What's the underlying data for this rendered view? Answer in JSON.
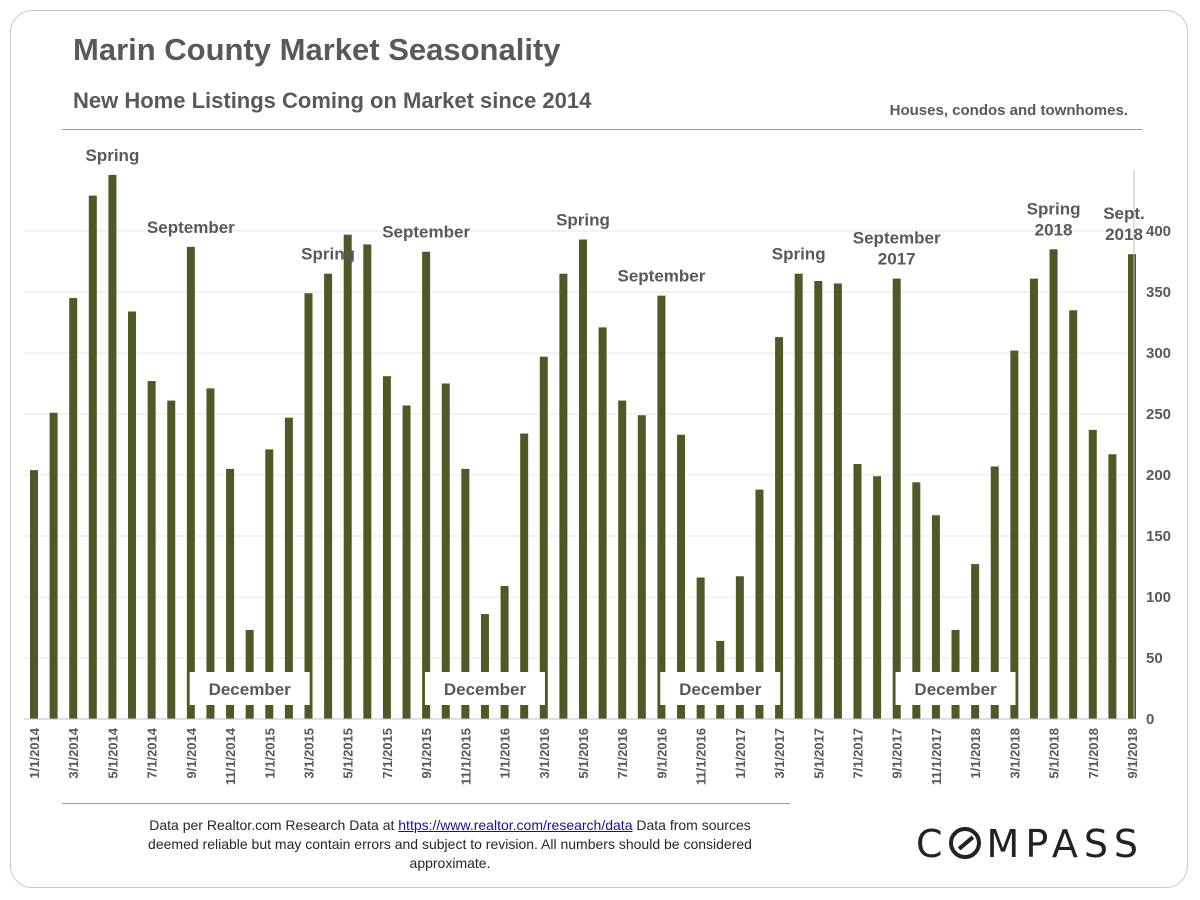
{
  "header": {
    "title": "Marin County Market Seasonality",
    "subtitle": "New Home Listings Coming on Market since 2014",
    "note": "Houses, condos and townhomes."
  },
  "footer": {
    "text_before": "Data per Realtor.com Research Data at ",
    "link": "https://www.realtor.com/research/data",
    "text_after": "  Data from sources deemed reliable but may contain errors and subject to revision.  All numbers should be considered approximate."
  },
  "logo": {
    "text_start": "C",
    "text_end": "MPASS"
  },
  "colors": {
    "bar": "#4d5a25",
    "axis_text": "#595959",
    "grid": "#e6e6e6"
  },
  "chart_data": {
    "type": "bar",
    "title": "Marin County Market Seasonality",
    "subtitle": "New Home Listings Coming on Market since 2014",
    "ylim": [
      0,
      450
    ],
    "yticks": [
      0,
      50,
      100,
      150,
      200,
      250,
      300,
      350,
      400
    ],
    "y_axis_position": "right",
    "grid": true,
    "categories": [
      "1/1/2014",
      "2/1/2014",
      "3/1/2014",
      "4/1/2014",
      "5/1/2014",
      "6/1/2014",
      "7/1/2014",
      "8/1/2014",
      "9/1/2014",
      "10/1/2014",
      "11/1/2014",
      "12/1/2014",
      "1/1/2015",
      "2/1/2015",
      "3/1/2015",
      "4/1/2015",
      "5/1/2015",
      "6/1/2015",
      "7/1/2015",
      "8/1/2015",
      "9/1/2015",
      "10/1/2015",
      "11/1/2015",
      "12/1/2015",
      "1/1/2016",
      "2/1/2016",
      "3/1/2016",
      "4/1/2016",
      "5/1/2016",
      "6/1/2016",
      "7/1/2016",
      "8/1/2016",
      "9/1/2016",
      "10/1/2016",
      "11/1/2016",
      "12/1/2016",
      "1/1/2017",
      "2/1/2017",
      "3/1/2017",
      "4/1/2017",
      "5/1/2017",
      "6/1/2017",
      "7/1/2017",
      "8/1/2017",
      "9/1/2017",
      "10/1/2017",
      "11/1/2017",
      "12/1/2017",
      "1/1/2018",
      "2/1/2018",
      "3/1/2018",
      "4/1/2018",
      "5/1/2018",
      "6/1/2018",
      "7/1/2018",
      "8/1/2018",
      "9/1/2018"
    ],
    "x_tick_labels": [
      "1/1/2014",
      "3/1/2014",
      "5/1/2014",
      "7/1/2014",
      "9/1/2014",
      "11/1/2014",
      "1/1/2015",
      "3/1/2015",
      "5/1/2015",
      "7/1/2015",
      "9/1/2015",
      "11/1/2015",
      "1/1/2016",
      "3/1/2016",
      "5/1/2016",
      "7/1/2016",
      "9/1/2016",
      "11/1/2016",
      "1/1/2017",
      "3/1/2017",
      "5/1/2017",
      "7/1/2017",
      "9/1/2017",
      "11/1/2017",
      "1/1/2018",
      "3/1/2018",
      "5/1/2018",
      "7/1/2018",
      "9/1/2018"
    ],
    "values": [
      204,
      251,
      345,
      429,
      446,
      334,
      277,
      261,
      387,
      271,
      205,
      73,
      221,
      247,
      349,
      365,
      397,
      389,
      281,
      257,
      383,
      275,
      205,
      86,
      109,
      234,
      297,
      365,
      393,
      321,
      261,
      249,
      347,
      233,
      116,
      64,
      117,
      188,
      313,
      365,
      359,
      357,
      209,
      199,
      361,
      194,
      167,
      73,
      127,
      207,
      302,
      361,
      385,
      335,
      237,
      217,
      381
    ],
    "annotations": [
      {
        "text": "Spring",
        "index": 4
      },
      {
        "text": "September",
        "index": 8
      },
      {
        "text": "December",
        "index": 11
      },
      {
        "text": "Spring",
        "index": 15
      },
      {
        "text": "September",
        "index": 20
      },
      {
        "text": "December",
        "index": 23
      },
      {
        "text": "Spring",
        "index": 28
      },
      {
        "text": "September",
        "index": 32
      },
      {
        "text": "December",
        "index": 35
      },
      {
        "text": "Spring",
        "index": 39
      },
      {
        "text": "September 2017",
        "index": 44
      },
      {
        "text": "December",
        "index": 47
      },
      {
        "text": "Spring 2018",
        "index": 52
      },
      {
        "text": "Sept. 2018",
        "index": 56
      }
    ]
  }
}
